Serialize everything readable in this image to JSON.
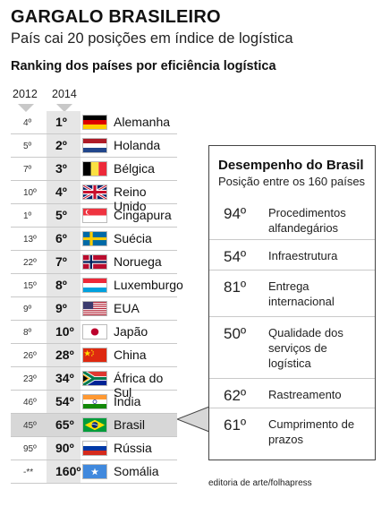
{
  "header": {
    "title": "GARGALO BRASILEIRO",
    "subtitle": "País cai 20 posições em índice de logística",
    "ranking_label": "Ranking dos países por eficiência logística",
    "year_2012": "2012",
    "year_2014": "2014"
  },
  "chart_data": {
    "type": "table",
    "columns": [
      "2012",
      "2014",
      "País"
    ],
    "rows": [
      {
        "rank_2012": "4º",
        "rank_2014": "1º",
        "country": "Alemanha",
        "flag": "germany-flag"
      },
      {
        "rank_2012": "5º",
        "rank_2014": "2º",
        "country": "Holanda",
        "flag": "netherlands-flag"
      },
      {
        "rank_2012": "7º",
        "rank_2014": "3º",
        "country": "Bélgica",
        "flag": "belgium-flag"
      },
      {
        "rank_2012": "10º",
        "rank_2014": "4º",
        "country": "Reino Unido",
        "flag": "uk-flag"
      },
      {
        "rank_2012": "1º",
        "rank_2014": "5º",
        "country": "Cingapura",
        "flag": "singapore-flag"
      },
      {
        "rank_2012": "13º",
        "rank_2014": "6º",
        "country": "Suécia",
        "flag": "sweden-flag"
      },
      {
        "rank_2012": "22º",
        "rank_2014": "7º",
        "country": "Noruega",
        "flag": "norway-flag"
      },
      {
        "rank_2012": "15º",
        "rank_2014": "8º",
        "country": "Luxemburgo",
        "flag": "luxembourg-flag"
      },
      {
        "rank_2012": "9º",
        "rank_2014": "9º",
        "country": "EUA",
        "flag": "usa-flag"
      },
      {
        "rank_2012": "8º",
        "rank_2014": "10º",
        "country": "Japão",
        "flag": "japan-flag"
      },
      {
        "rank_2012": "26º",
        "rank_2014": "28º",
        "country": "China",
        "flag": "china-flag"
      },
      {
        "rank_2012": "23º",
        "rank_2014": "34º",
        "country": "África do Sul",
        "flag": "south-africa-flag"
      },
      {
        "rank_2012": "46º",
        "rank_2014": "54º",
        "country": "Índia",
        "flag": "india-flag"
      },
      {
        "rank_2012": "45º",
        "rank_2014": "65º",
        "country": "Brasil",
        "flag": "brazil-flag",
        "highlight": true
      },
      {
        "rank_2012": "95º",
        "rank_2014": "90º",
        "country": "Rússia",
        "flag": "russia-flag"
      },
      {
        "rank_2012": "-**",
        "rank_2014": "160º",
        "country": "Somália",
        "flag": "somalia-flag"
      }
    ]
  },
  "brasil_box": {
    "title": "Desempenho do Brasil",
    "subtitle": "Posição entre os 160 países",
    "items": [
      {
        "value": "94º",
        "label": "Procedimentos alfandegários"
      },
      {
        "value": "54º",
        "label": "Infraestrutura"
      },
      {
        "value": "81º",
        "label": "Entrega internacional"
      },
      {
        "value": "50º",
        "label": "Qualidade dos serviços de logística"
      },
      {
        "value": "62º",
        "label": "Rastreamento"
      },
      {
        "value": "61º",
        "label": "Cumprimento de prazos"
      }
    ]
  },
  "credit": "editoria de arte/folhapress"
}
